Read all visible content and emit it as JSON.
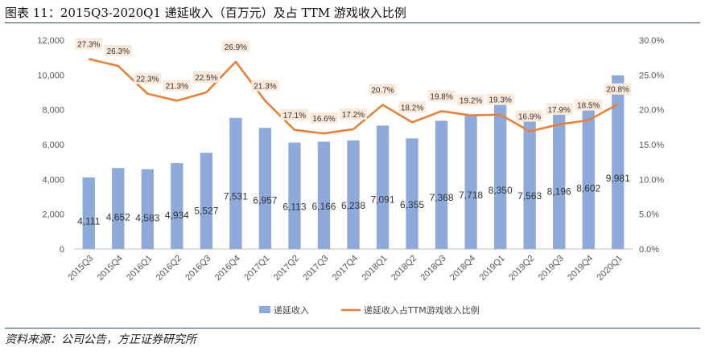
{
  "header": {
    "title": "图表 11：2015Q3-2020Q1 递延收入（百万元）及占 TTM 游戏收入比例"
  },
  "footer": {
    "source": "资料来源：公司公告，方正证券研究所"
  },
  "chart_data": {
    "type": "bar",
    "title": "图表 11：2015Q3-2020Q1 递延收入（百万元）及占 TTM 游戏收入比例",
    "categories": [
      "2015Q3",
      "2015Q4",
      "2016Q1",
      "2016Q2",
      "2016Q3",
      "2016Q4",
      "2017Q1",
      "2017Q2",
      "2017Q3",
      "2017Q4",
      "2018Q1",
      "2018Q2",
      "2018Q3",
      "2018Q4",
      "2019Q1",
      "2019Q2",
      "2019Q3",
      "2019Q4",
      "2020Q1"
    ],
    "series": [
      {
        "name": "递延收入",
        "type": "bar",
        "axis": "left",
        "color": "#8eaadb",
        "values": [
          4111,
          4652,
          4583,
          4934,
          5527,
          7531,
          6957,
          6113,
          6166,
          6238,
          7091,
          6355,
          7368,
          7718,
          8350,
          7563,
          8196,
          8602,
          9981
        ],
        "labels": [
          "4,111",
          "4,652",
          "4,583",
          "4,934",
          "5,527",
          "7,531",
          "6,957",
          "6,113",
          "6,166",
          "6,238",
          "7,091",
          "6,355",
          "7,368",
          "7,718",
          "8,350",
          "7,563",
          "8,196",
          "8,602",
          "9,981"
        ]
      },
      {
        "name": "递延收入占TTM游戏收入比例",
        "type": "line",
        "axis": "right",
        "color": "#ed7d31",
        "values": [
          27.3,
          26.3,
          22.3,
          21.3,
          22.5,
          26.9,
          21.3,
          17.1,
          16.6,
          17.2,
          20.7,
          18.2,
          19.8,
          19.2,
          19.3,
          16.9,
          17.9,
          18.5,
          20.8
        ],
        "labels": [
          "27.3%",
          "26.3%",
          "22.3%",
          "21.3%",
          "22.5%",
          "26.9%",
          "21.3%",
          "17.1%",
          "16.6%",
          "17.2%",
          "20.7%",
          "18.2%",
          "19.8%",
          "19.2%",
          "19.3%",
          "16.9%",
          "17.9%",
          "18.5%",
          "20.8%"
        ]
      }
    ],
    "left_axis": {
      "ylim": [
        0,
        12000
      ],
      "ticks": [
        "0",
        "2,000",
        "4,000",
        "6,000",
        "8,000",
        "10,000",
        "12,000"
      ],
      "tick_values": [
        0,
        2000,
        4000,
        6000,
        8000,
        10000,
        12000
      ]
    },
    "right_axis": {
      "ylim": [
        0,
        30
      ],
      "ticks": [
        "0.0%",
        "5.0%",
        "10.0%",
        "15.0%",
        "20.0%",
        "25.0%",
        "30.0%"
      ],
      "tick_values": [
        0,
        5,
        10,
        15,
        20,
        25,
        30
      ]
    },
    "legend": {
      "position": "bottom-center",
      "entries": [
        "递延收入",
        "递延收入占TTM游戏收入比例"
      ]
    },
    "grid": false
  }
}
